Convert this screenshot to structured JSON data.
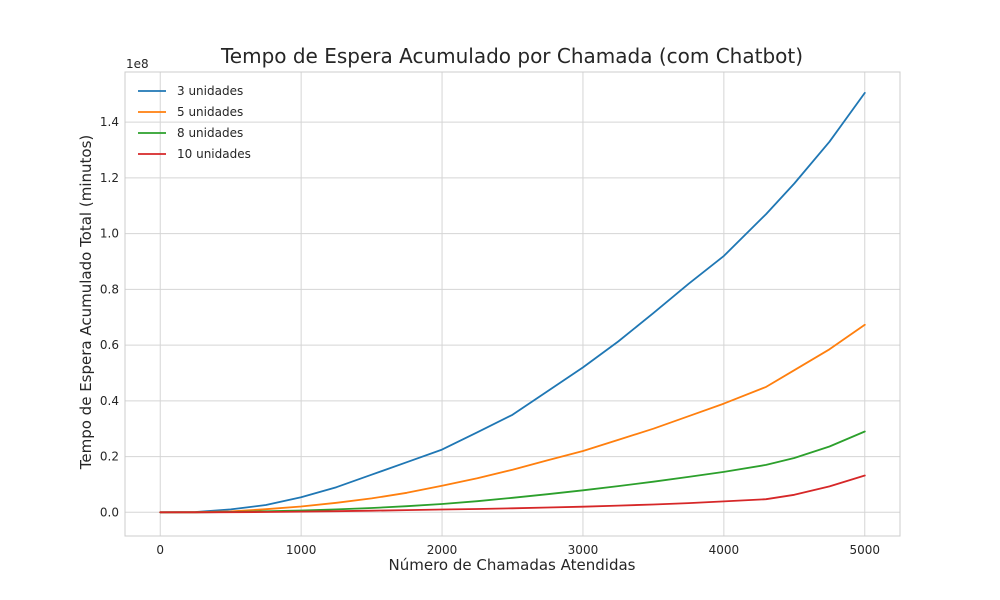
{
  "chart_data": {
    "type": "line",
    "title": "Tempo de Espera Acumulado por Chamada (com Chatbot)",
    "xlabel": "Número de Chamadas Atendidas",
    "ylabel": "Tempo de Espera Acumulado Total (minutos)",
    "y_offset_label": "1e8",
    "y_scale_factor": 100000000,
    "xlim": [
      -250,
      5250
    ],
    "ylim": [
      -0.085,
      1.58
    ],
    "x_ticks": [
      0,
      1000,
      2000,
      3000,
      4000,
      5000
    ],
    "x_tick_labels": [
      "0",
      "1000",
      "2000",
      "3000",
      "4000",
      "5000"
    ],
    "y_ticks": [
      0,
      0.2,
      0.4,
      0.6,
      0.8,
      1.0,
      1.2,
      1.4
    ],
    "y_tick_labels": [
      "0.0",
      "0.2",
      "0.4",
      "0.6",
      "0.8",
      "1.0",
      "1.2",
      "1.4"
    ],
    "grid": true,
    "legend_position": "top-left",
    "x": [
      0,
      250,
      500,
      750,
      1000,
      1250,
      1500,
      1750,
      2000,
      2250,
      2500,
      2750,
      3000,
      3250,
      3500,
      3750,
      4000,
      4300,
      4500,
      4750,
      5000
    ],
    "series": [
      {
        "name": "3 unidades",
        "color": "#1f77b4",
        "values": [
          0,
          0.0013,
          0.0104,
          0.0263,
          0.054,
          0.09,
          0.135,
          0.18,
          0.225,
          0.287,
          0.35,
          0.435,
          0.52,
          0.613,
          0.715,
          0.82,
          0.92,
          1.07,
          1.18,
          1.33,
          1.505
        ]
      },
      {
        "name": "5 unidades",
        "color": "#ff7f0e",
        "values": [
          0,
          0.0003,
          0.0032,
          0.011,
          0.021,
          0.034,
          0.05,
          0.07,
          0.095,
          0.122,
          0.153,
          0.187,
          0.22,
          0.26,
          0.3,
          0.345,
          0.39,
          0.45,
          0.51,
          0.585,
          0.673
        ]
      },
      {
        "name": "8 unidades",
        "color": "#2ca02c",
        "values": [
          0,
          0.0001,
          0.0011,
          0.0035,
          0.0065,
          0.0104,
          0.0155,
          0.022,
          0.03,
          0.04,
          0.052,
          0.065,
          0.079,
          0.094,
          0.11,
          0.127,
          0.145,
          0.17,
          0.195,
          0.236,
          0.29
        ]
      },
      {
        "name": "10 unidades",
        "color": "#d62728",
        "values": [
          0,
          0,
          0.0004,
          0.0013,
          0.0025,
          0.004,
          0.0058,
          0.0078,
          0.01,
          0.012,
          0.0145,
          0.0172,
          0.02,
          0.024,
          0.028,
          0.033,
          0.039,
          0.047,
          0.063,
          0.093,
          0.132
        ]
      }
    ]
  }
}
